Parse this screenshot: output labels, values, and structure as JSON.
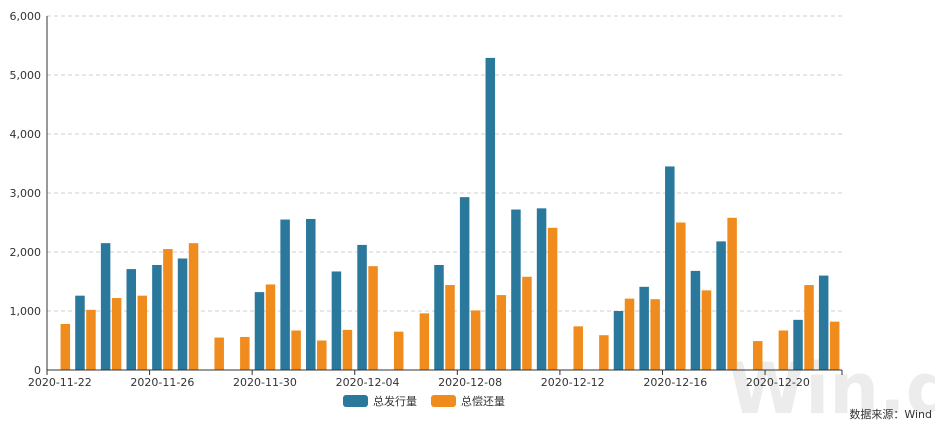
{
  "chart_data": {
    "type": "bar",
    "title": "",
    "xlabel": "",
    "ylabel": "",
    "ylim": [
      0,
      6000
    ],
    "y_ticks": [
      "0",
      "1,000",
      "2,000",
      "3,000",
      "4,000",
      "5,000",
      "6,000"
    ],
    "y_tick_values": [
      0,
      1000,
      2000,
      3000,
      4000,
      5000,
      6000
    ],
    "grid": true,
    "legend_position": "bottom",
    "categories": [
      "2020-11-22",
      "2020-11-23",
      "2020-11-24",
      "2020-11-25",
      "2020-11-26",
      "2020-11-27",
      "2020-11-28",
      "2020-11-29",
      "2020-11-30",
      "2020-12-01",
      "2020-12-02",
      "2020-12-03",
      "2020-12-04",
      "2020-12-05",
      "2020-12-06",
      "2020-12-07",
      "2020-12-08",
      "2020-12-09",
      "2020-12-10",
      "2020-12-11",
      "2020-12-12",
      "2020-12-13",
      "2020-12-14",
      "2020-12-15",
      "2020-12-16",
      "2020-12-17",
      "2020-12-18",
      "2020-12-19",
      "2020-12-20",
      "2020-12-21",
      "2020-12-22"
    ],
    "x_tick_labels": [
      "2020-11-22",
      "2020-11-26",
      "2020-11-30",
      "2020-12-04",
      "2020-12-08",
      "2020-12-12",
      "2020-12-16",
      "2020-12-20"
    ],
    "series": [
      {
        "name": "总发行量",
        "color": "#2a789c",
        "values": [
          0,
          1260,
          2150,
          1710,
          1780,
          1890,
          0,
          0,
          1320,
          2550,
          2560,
          1670,
          2120,
          0,
          0,
          1780,
          2930,
          5290,
          2720,
          2740,
          0,
          0,
          1000,
          1410,
          3450,
          1680,
          2180,
          0,
          0,
          850,
          1600
        ]
      },
      {
        "name": "总偿还量",
        "color": "#f08c1e",
        "values": [
          780,
          1020,
          1220,
          1260,
          2050,
          2150,
          550,
          560,
          1450,
          670,
          500,
          680,
          1760,
          650,
          960,
          1440,
          1010,
          1270,
          1580,
          2410,
          740,
          590,
          1210,
          1200,
          2500,
          1350,
          2580,
          490,
          670,
          1440,
          820
        ]
      }
    ]
  },
  "legend": {
    "series_1": "总发行量",
    "series_2": "总偿还量"
  },
  "source": "数据来源：Wind",
  "watermark": "Win.d"
}
